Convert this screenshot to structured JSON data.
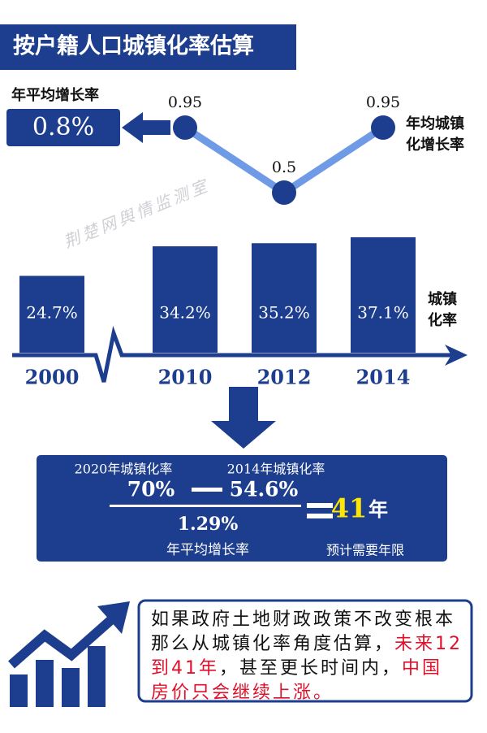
{
  "header": {
    "title": "按户籍人口城镇化率估算"
  },
  "growth": {
    "label": "年平均增长率",
    "value": "0.8%"
  },
  "line": {
    "label": "年均城镇化增长率",
    "points": [
      {
        "value": 0.95
      },
      {
        "value": 0.5
      },
      {
        "value": 0.95
      }
    ]
  },
  "watermark": "荆楚网舆情监测室",
  "bars": {
    "label": "城镇化率",
    "items": [
      {
        "year": "2000",
        "value": 24.7,
        "value_label": "24.7%"
      },
      {
        "year": "2010",
        "value": 34.2,
        "value_label": "34.2%"
      },
      {
        "year": "2012",
        "value": 35.2,
        "value_label": "35.2%"
      },
      {
        "year": "2014",
        "value": 37.1,
        "value_label": "37.1%"
      }
    ]
  },
  "formula": {
    "target_label": "2020年城镇化率",
    "target": "70%",
    "current_label": "2014年城镇化率",
    "current": "54.6%",
    "rate": "1.29%",
    "rate_label": "年平均增长率",
    "result": "41",
    "result_unit": "年",
    "result_label": "预计需要年限"
  },
  "conclusion": [
    {
      "text": "如果政府土地财政政策不改变根本那么从城镇化率角度估算，",
      "red": false
    },
    {
      "text": "未来12到41年",
      "red": true
    },
    {
      "text": "，甚至更长时间内，",
      "red": false
    },
    {
      "text": "中国房价只会继续上涨。",
      "red": true
    }
  ]
}
